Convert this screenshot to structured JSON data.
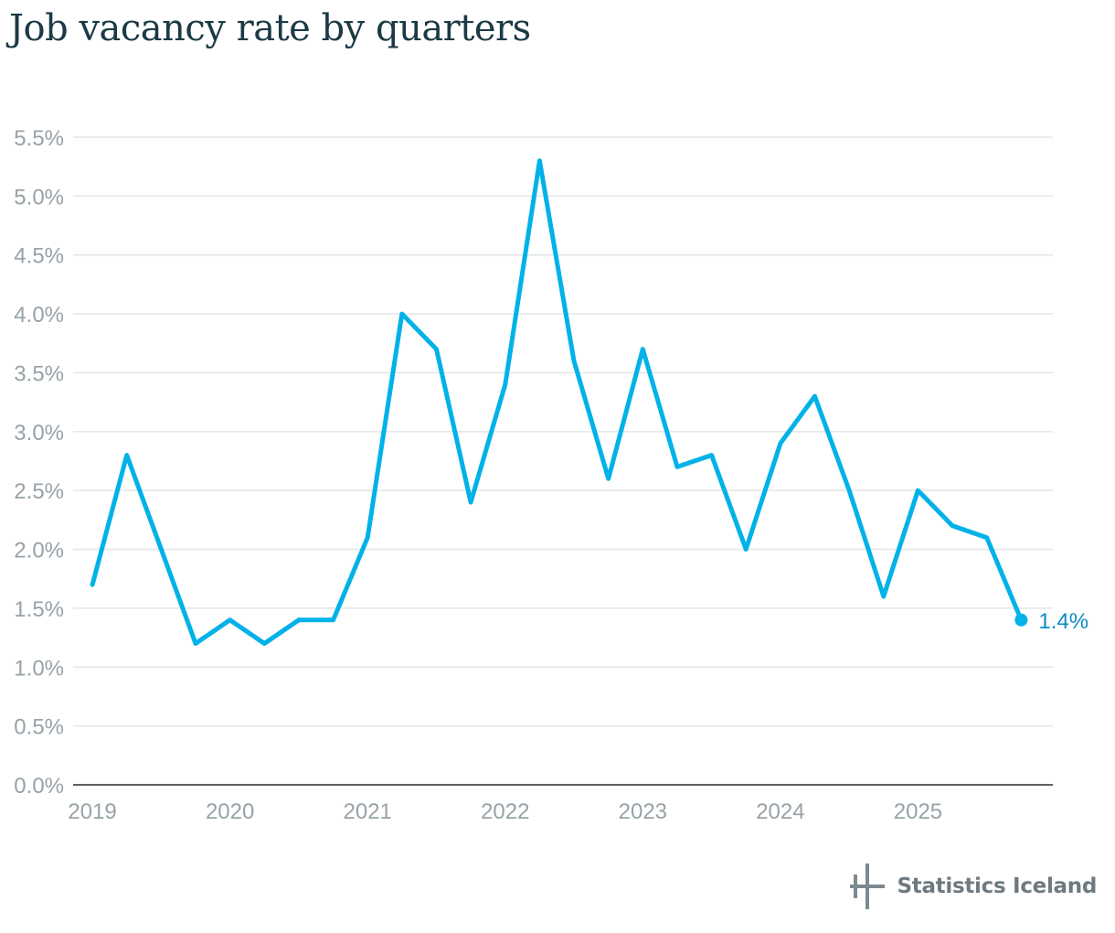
{
  "title": "Job vacancy rate by quarters",
  "brand": {
    "name": "Statistics Iceland",
    "logo_icon": "statistics-iceland-logo-icon"
  },
  "colors": {
    "line": "#00b2e8",
    "end_label": "#0b8cc4",
    "grid": "#e3e6e8",
    "axis": "#2b2b2b",
    "tick": "#97a2a8",
    "title": "#1b3a45"
  },
  "chart_data": {
    "type": "line",
    "title": "Job vacancy rate by quarters",
    "xlabel": "",
    "ylabel": "",
    "x_unit": "quarter",
    "x_start": 2019.0,
    "x_step": 0.25,
    "values": [
      1.7,
      2.8,
      2.0,
      1.2,
      1.4,
      1.2,
      1.4,
      1.4,
      2.1,
      4.0,
      3.7,
      2.4,
      3.4,
      5.3,
      3.6,
      2.6,
      3.7,
      2.7,
      2.8,
      2.0,
      2.9,
      3.3,
      2.5,
      1.6,
      2.5,
      2.2,
      2.1,
      1.4
    ],
    "xlim": [
      2018.86,
      2025.98
    ],
    "ylim": [
      0,
      5.5
    ],
    "y_ticks": [
      0.0,
      0.5,
      1.0,
      1.5,
      2.0,
      2.5,
      3.0,
      3.5,
      4.0,
      4.5,
      5.0,
      5.5
    ],
    "y_tick_labels": [
      "0.0%",
      "0.5%",
      "1.0%",
      "1.5%",
      "2.0%",
      "2.5%",
      "3.0%",
      "3.5%",
      "4.0%",
      "4.5%",
      "5.0%",
      "5.5%"
    ],
    "x_ticks": [
      2019,
      2020,
      2021,
      2022,
      2023,
      2024,
      2025
    ],
    "x_tick_labels": [
      "2019",
      "2020",
      "2021",
      "2022",
      "2023",
      "2024",
      "2025"
    ],
    "end_label": "1.4%",
    "grid": true
  }
}
